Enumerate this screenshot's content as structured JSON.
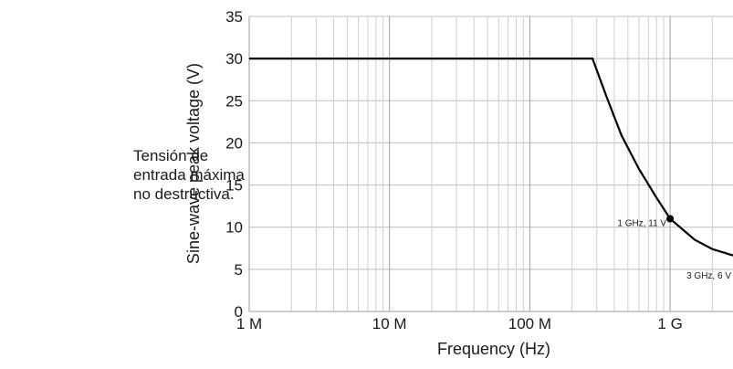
{
  "caption": "Tensión de entrada máxima no destructiva.",
  "chart_data": {
    "type": "line",
    "xlabel": "Frequency (Hz)",
    "ylabel": "Sine-wave peak voltage (V)",
    "xscale": "log",
    "xlim": [
      1000000,
      3000000000
    ],
    "ylim": [
      0,
      35
    ],
    "grid": true,
    "x_ticks": [
      {
        "value": 1000000,
        "label": "1 M"
      },
      {
        "value": 10000000,
        "label": "10 M"
      },
      {
        "value": 100000000,
        "label": "100 M"
      },
      {
        "value": 1000000000,
        "label": "1 G"
      }
    ],
    "y_ticks": [
      0,
      5,
      10,
      15,
      20,
      25,
      30,
      35
    ],
    "series": [
      {
        "x": [
          1000000,
          280000000,
          350000000,
          450000000,
          600000000,
          800000000,
          1000000000,
          1500000000,
          2000000000,
          3000000000
        ],
        "y": [
          30,
          30,
          25.6,
          20.9,
          16.9,
          13.5,
          11,
          8.5,
          7.4,
          6.5
        ]
      }
    ],
    "annotations": [
      {
        "x": 1000000000,
        "y": 11,
        "label": "1 GHz, 11 V",
        "marker": true
      },
      {
        "x": 3000000000,
        "y": 6.5,
        "label": "3 GHz, 6 V",
        "marker": false
      }
    ]
  }
}
